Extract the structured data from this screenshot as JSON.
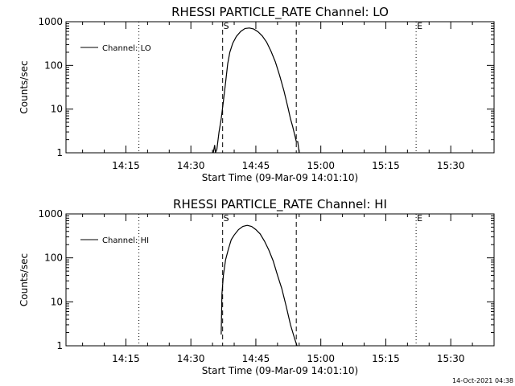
{
  "footer": {
    "timestamp": "14-Oct-2021 04:38"
  },
  "chart_data": [
    {
      "type": "line",
      "title": "RHESSI PARTICLE_RATE Channel: LO",
      "xlabel": "Start Time (09-Mar-09 14:01:10)",
      "ylabel": "Counts/sec",
      "yscale": "log",
      "ylim": [
        1,
        1000
      ],
      "xlim": [
        "14:01:10",
        "15:40:00"
      ],
      "x_ticks": [
        "14:15",
        "14:30",
        "14:45",
        "15:00",
        "15:15",
        "15:30"
      ],
      "y_ticks": [
        "1",
        "10",
        "100",
        "1000"
      ],
      "legend": {
        "position": "top-left",
        "entries": [
          "Channel: LO"
        ]
      },
      "markers": [
        {
          "label": "S",
          "time": "14:37:20",
          "style": "dashed"
        },
        {
          "label": "",
          "time": "14:54:20",
          "style": "dashed"
        },
        {
          "label": "",
          "time": "14:18:00",
          "style": "dotted"
        },
        {
          "label": "E",
          "time": "15:22:00",
          "style": "dotted"
        },
        {
          "label": "",
          "time": "15:40:00",
          "style": "dotted"
        }
      ],
      "series": [
        {
          "name": "Channel: LO",
          "x": [
            "14:35:10",
            "14:35:30",
            "14:35:40",
            "14:36:00",
            "14:36:30",
            "14:37:00",
            "14:37:30",
            "14:38:00",
            "14:38:30",
            "14:39:00",
            "14:39:40",
            "14:40:30",
            "14:41:30",
            "14:42:30",
            "14:43:30",
            "14:44:30",
            "14:45:30",
            "14:46:30",
            "14:47:30",
            "14:48:30",
            "14:49:30",
            "14:50:30",
            "14:51:30",
            "14:52:30",
            "14:53:00",
            "14:53:30",
            "14:54:00",
            "14:54:20",
            "14:54:40",
            "14:55:00"
          ],
          "y": [
            1,
            1.5,
            1,
            1.2,
            3,
            6,
            15,
            40,
            110,
            200,
            320,
            460,
            600,
            700,
            720,
            680,
            590,
            470,
            340,
            210,
            120,
            58,
            26,
            10,
            6,
            4,
            2.5,
            1.8,
            1.8,
            1
          ]
        }
      ]
    },
    {
      "type": "line",
      "title": "RHESSI PARTICLE_RATE Channel: HI",
      "xlabel": "Start Time (09-Mar-09 14:01:10)",
      "ylabel": "Counts/sec",
      "yscale": "log",
      "ylim": [
        1,
        1000
      ],
      "xlim": [
        "14:01:10",
        "15:40:00"
      ],
      "x_ticks": [
        "14:15",
        "14:30",
        "14:45",
        "15:00",
        "15:15",
        "15:30"
      ],
      "y_ticks": [
        "1",
        "10",
        "100",
        "1000"
      ],
      "legend": {
        "position": "top-left",
        "entries": [
          "Channel: HI"
        ]
      },
      "markers": [
        {
          "label": "S",
          "time": "14:37:20",
          "style": "dashed"
        },
        {
          "label": "",
          "time": "14:54:20",
          "style": "dashed"
        },
        {
          "label": "",
          "time": "14:18:00",
          "style": "dotted"
        },
        {
          "label": "E",
          "time": "15:22:00",
          "style": "dotted"
        },
        {
          "label": "",
          "time": "15:40:00",
          "style": "dotted"
        }
      ],
      "series": [
        {
          "name": "Channel: HI",
          "x": [
            "14:37:00",
            "14:37:10",
            "14:37:30",
            "14:38:00",
            "14:38:40",
            "14:39:20",
            "14:40:00",
            "14:41:00",
            "14:42:00",
            "14:43:00",
            "14:44:00",
            "14:45:00",
            "14:46:00",
            "14:47:00",
            "14:48:00",
            "14:49:00",
            "14:50:00",
            "14:51:00",
            "14:52:00",
            "14:53:00",
            "14:54:00",
            "14:54:30"
          ],
          "y": [
            1.8,
            15,
            40,
            90,
            160,
            260,
            330,
            440,
            520,
            550,
            520,
            440,
            350,
            240,
            150,
            85,
            40,
            20,
            8,
            3,
            1.4,
            1
          ]
        }
      ]
    }
  ]
}
